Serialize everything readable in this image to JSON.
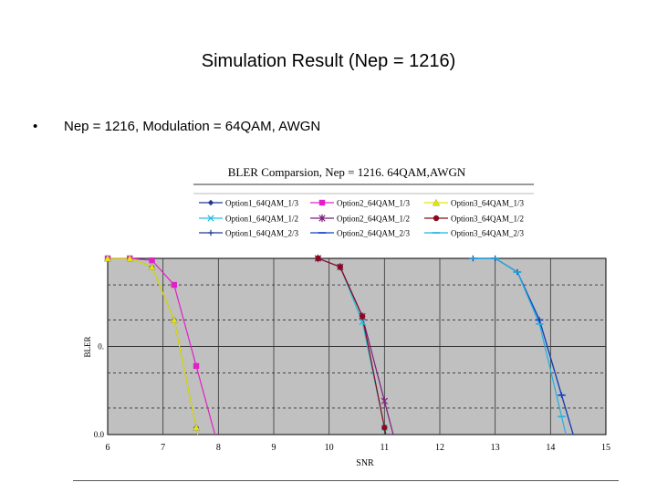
{
  "slide": {
    "title": "Simulation Result (Nep = 1216)",
    "bullet": "Nep = 1216, Modulation = 64QAM, AWGN"
  },
  "chart_data": {
    "type": "line",
    "title": "BLER Comparsion, Nep = 1216. 64QAM,AWGN",
    "xlabel": "SNR",
    "ylabel": "BLER",
    "xlim": [
      6,
      15
    ],
    "x_ticks": [
      "6",
      "7",
      "8",
      "9",
      "10",
      "11",
      "12",
      "13",
      "14",
      "15"
    ],
    "y_scale": "log",
    "ylim": [
      0.01,
      1
    ],
    "y_ticks": [
      {
        "value": 0.1,
        "label": "0."
      },
      {
        "value": 0.01,
        "label": "0.0"
      }
    ],
    "grid": true,
    "legend_position": "top",
    "series": [
      {
        "name": "Option1_64QAM_1/3",
        "color": "#1f3a93",
        "marker": "diamond",
        "x": [
          6.0,
          6.4,
          6.8,
          7.2,
          7.6
        ],
        "y": [
          1.0,
          1.0,
          0.8,
          0.2,
          0.012
        ]
      },
      {
        "name": "Option2_64QAM_1/3",
        "color": "#e020c8",
        "marker": "square",
        "x": [
          6.0,
          6.4,
          6.8,
          7.2,
          7.6
        ],
        "y": [
          1.0,
          1.0,
          0.95,
          0.5,
          0.06
        ]
      },
      {
        "name": "Option3_64QAM_1/3",
        "color": "#e6e600",
        "marker": "triangle",
        "x": [
          6.0,
          6.4,
          6.8,
          7.2,
          7.6
        ],
        "y": [
          1.0,
          1.0,
          0.8,
          0.2,
          0.012
        ]
      },
      {
        "name": "Option1_64QAM_1/2",
        "color": "#20c0e0",
        "marker": "x",
        "x": [
          9.8,
          10.2,
          10.6,
          11.0
        ],
        "y": [
          1.0,
          0.8,
          0.19,
          0.012
        ]
      },
      {
        "name": "Option2_64QAM_1/2",
        "color": "#7a1f7a",
        "marker": "star",
        "x": [
          9.8,
          10.2,
          10.6,
          11.0
        ],
        "y": [
          1.0,
          0.8,
          0.22,
          0.024
        ]
      },
      {
        "name": "Option3_64QAM_1/2",
        "color": "#8b0a1a",
        "marker": "circle",
        "x": [
          9.8,
          10.2,
          10.6,
          11.0
        ],
        "y": [
          1.0,
          0.8,
          0.22,
          0.012
        ]
      },
      {
        "name": "Option1_64QAM_2/3",
        "color": "#1f3a93",
        "marker": "plus",
        "x": [
          12.6,
          13.0,
          13.4,
          13.8,
          14.2
        ],
        "y": [
          1.0,
          1.0,
          0.7,
          0.2,
          0.028
        ]
      },
      {
        "name": "Option2_64QAM_2/3",
        "color": "#1040c0",
        "marker": "dash",
        "x": [
          12.6,
          13.0,
          13.4,
          13.8,
          14.2
        ],
        "y": [
          1.0,
          1.0,
          0.7,
          0.2,
          0.028
        ]
      },
      {
        "name": "Option3_64QAM_2/3",
        "color": "#20b0e0",
        "marker": "dash",
        "x": [
          12.6,
          13.0,
          13.4,
          13.8,
          14.2
        ],
        "y": [
          1.0,
          1.0,
          0.7,
          0.18,
          0.016
        ]
      }
    ]
  }
}
